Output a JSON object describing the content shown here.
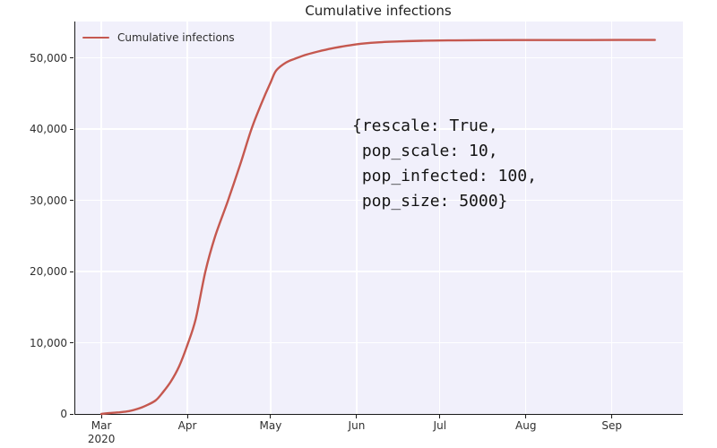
{
  "chart_data": {
    "type": "line",
    "title": "Cumulative infections",
    "legend": [
      "Cumulative infections"
    ],
    "legend_position": "upper left",
    "grid": true,
    "background_color": "#f1f0fb",
    "gridline_color": "#ffffff",
    "line_color": "#c5584f",
    "axis_color": "#1a1a1a",
    "xlabel": "",
    "ylabel": "",
    "xlim_days": [
      -9.4,
      209.6
    ],
    "ylim": [
      0,
      55100
    ],
    "x_ticks": [
      {
        "day": 0,
        "label": "Mar",
        "sublabel": "2020"
      },
      {
        "day": 31,
        "label": "Apr"
      },
      {
        "day": 61,
        "label": "May"
      },
      {
        "day": 92,
        "label": "Jun"
      },
      {
        "day": 122,
        "label": "Jul"
      },
      {
        "day": 153,
        "label": "Aug"
      },
      {
        "day": 184,
        "label": "Sep"
      }
    ],
    "y_ticks": [
      {
        "value": 0,
        "label": "0"
      },
      {
        "value": 10000,
        "label": "10,000"
      },
      {
        "value": 20000,
        "label": "20,000"
      },
      {
        "value": 30000,
        "label": "30,000"
      },
      {
        "value": 40000,
        "label": "40,000"
      },
      {
        "value": 50000,
        "label": "50,000"
      }
    ],
    "series": [
      {
        "name": "Cumulative infections",
        "start_date": "2020-03-01",
        "final_value": 52510,
        "points": [
          [
            0,
            0
          ],
          [
            3,
            130
          ],
          [
            6.5,
            230
          ],
          [
            10,
            400
          ],
          [
            13,
            700
          ],
          [
            16,
            1160
          ],
          [
            19.5,
            1890
          ],
          [
            22,
            2960
          ],
          [
            25,
            4530
          ],
          [
            28,
            6670
          ],
          [
            31,
            9690
          ],
          [
            34,
            13340
          ],
          [
            37.5,
            20010
          ],
          [
            41,
            24920
          ],
          [
            45.5,
            29820
          ],
          [
            50,
            34980
          ],
          [
            54,
            39890
          ],
          [
            57.5,
            43410
          ],
          [
            61,
            46560
          ],
          [
            63,
            48200
          ],
          [
            66.5,
            49330
          ],
          [
            70,
            49900
          ],
          [
            74,
            50460
          ],
          [
            79,
            50970
          ],
          [
            84,
            51400
          ],
          [
            92,
            51910
          ],
          [
            99,
            52160
          ],
          [
            107.5,
            52310
          ],
          [
            115.5,
            52390
          ],
          [
            125,
            52450
          ],
          [
            138,
            52480
          ],
          [
            154,
            52500
          ],
          [
            170.5,
            52500
          ],
          [
            186.5,
            52510
          ],
          [
            199.5,
            52510
          ]
        ]
      }
    ],
    "annotation": {
      "text": "{rescale: True,\n pop_scale: 10,\n pop_infected: 100,\n pop_size: 5000}"
    }
  }
}
